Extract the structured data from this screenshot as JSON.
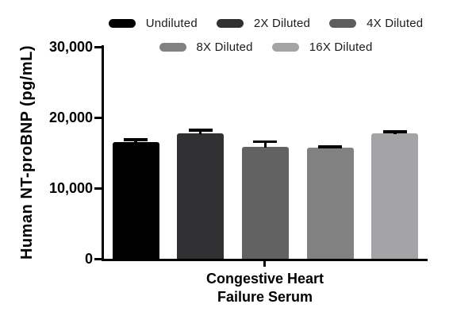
{
  "chart_data": {
    "type": "bar",
    "title": "",
    "ylabel": "Human NT-proBNP (pg/mL)",
    "xlabel_lines": [
      "Congestive Heart",
      "Failure Serum"
    ],
    "group_label": "Congestive Heart Failure Serum",
    "categories": [
      "Undiluted",
      "2X Diluted",
      "4X Diluted",
      "8X Diluted",
      "16X Diluted"
    ],
    "values": [
      16500,
      17800,
      15800,
      15700,
      17700
    ],
    "errors": [
      350,
      400,
      800,
      150,
      250
    ],
    "bar_colors": [
      "#000000",
      "#313133",
      "#626262",
      "#818181",
      "#a4a4a7"
    ],
    "error_color": "#000000",
    "ylim": [
      0,
      30000
    ],
    "yticks": [
      0,
      10000,
      20000,
      30000
    ],
    "ytick_labels": [
      "0",
      "10,000",
      "20,000",
      "30,000"
    ],
    "grid": false,
    "legend_position": "top"
  },
  "legend": {
    "items": [
      {
        "label": "Undiluted",
        "color": "#000000"
      },
      {
        "label": "2X Diluted",
        "color": "#313133"
      },
      {
        "label": "4X Diluted",
        "color": "#5d5d5f"
      },
      {
        "label": "8X Diluted",
        "color": "#818181"
      },
      {
        "label": "16X Diluted",
        "color": "#a4a4a7"
      }
    ],
    "row_break": 3
  },
  "colors": {
    "axis": "#000000",
    "text": "#000000",
    "background": "#ffffff"
  }
}
